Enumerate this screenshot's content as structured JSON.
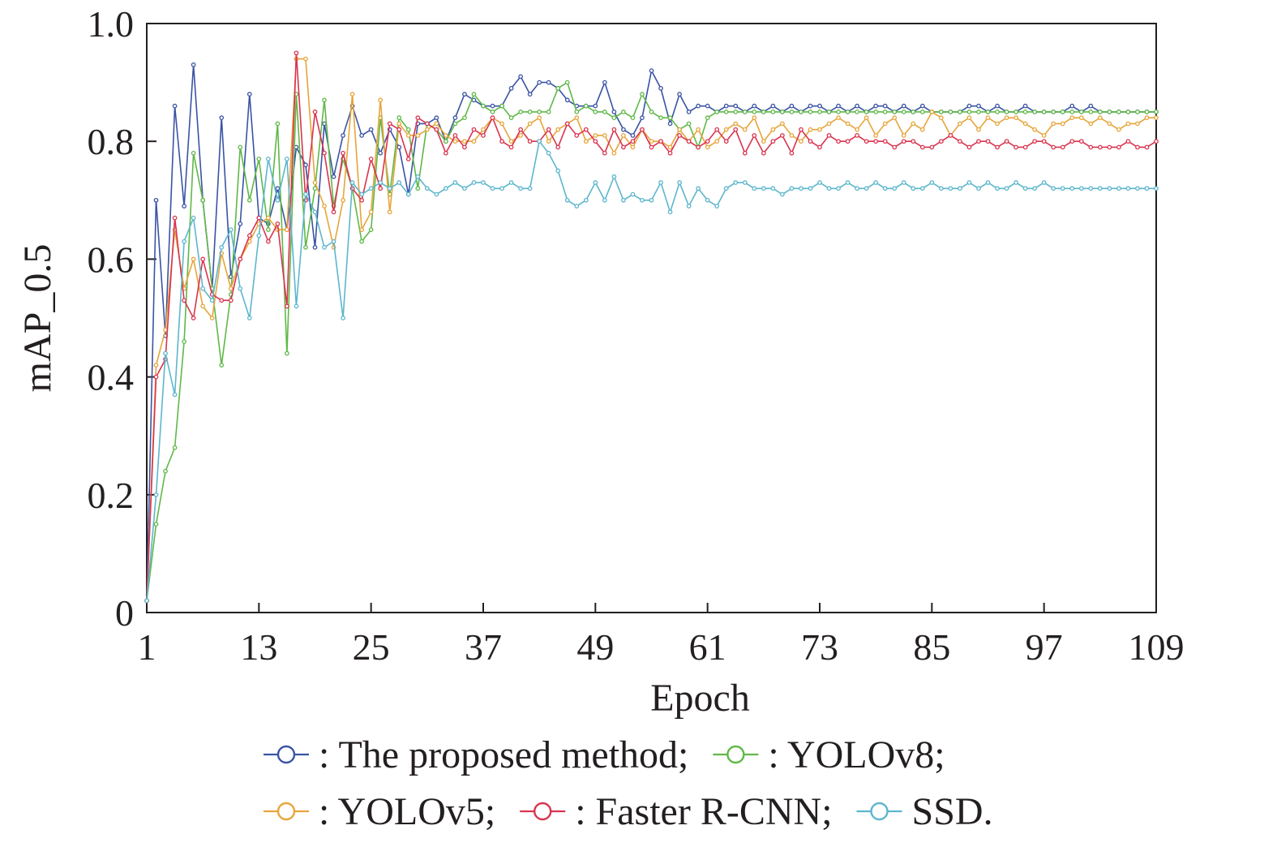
{
  "chart_data": {
    "type": "line",
    "title": "",
    "xlabel": "Epoch",
    "ylabel": "mAP_0.5",
    "xlim": [
      1,
      109
    ],
    "ylim": [
      0,
      1.0
    ],
    "x_ticks": [
      1,
      13,
      25,
      37,
      49,
      61,
      73,
      85,
      97,
      109
    ],
    "y_ticks": [
      0,
      0.2,
      0.4,
      0.6,
      0.8,
      1.0
    ],
    "x_tick_labels": [
      "1",
      "13",
      "25",
      "37",
      "49",
      "61",
      "73",
      "85",
      "97",
      "109"
    ],
    "y_tick_labels": [
      "0",
      "0.2",
      "0.4",
      "0.6",
      "0.8",
      "1.0"
    ],
    "grid": false,
    "legend_position": "bottom",
    "x": [
      1,
      2,
      3,
      4,
      5,
      6,
      7,
      8,
      9,
      10,
      11,
      12,
      13,
      14,
      15,
      16,
      17,
      18,
      19,
      20,
      21,
      22,
      23,
      24,
      25,
      26,
      27,
      28,
      29,
      30,
      31,
      32,
      33,
      34,
      35,
      36,
      37,
      38,
      39,
      40,
      41,
      42,
      43,
      44,
      45,
      46,
      47,
      48,
      49,
      50,
      51,
      52,
      53,
      54,
      55,
      56,
      57,
      58,
      59,
      60,
      61,
      62,
      63,
      64,
      65,
      66,
      67,
      68,
      69,
      70,
      71,
      72,
      73,
      74,
      75,
      76,
      77,
      78,
      79,
      80,
      81,
      82,
      83,
      84,
      85,
      86,
      87,
      88,
      89,
      90,
      91,
      92,
      93,
      94,
      95,
      96,
      97,
      98,
      99,
      100,
      101,
      102,
      103,
      104,
      105,
      106,
      107,
      108,
      109
    ],
    "series": [
      {
        "name": ": The proposed method;",
        "color": "#3a53a4",
        "values": [
          0.02,
          0.7,
          0.47,
          0.86,
          0.69,
          0.93,
          0.7,
          0.55,
          0.84,
          0.57,
          0.66,
          0.88,
          0.67,
          0.66,
          0.72,
          0.65,
          0.79,
          0.76,
          0.62,
          0.83,
          0.74,
          0.81,
          0.86,
          0.81,
          0.82,
          0.78,
          0.82,
          0.79,
          0.71,
          0.83,
          0.83,
          0.84,
          0.8,
          0.84,
          0.88,
          0.87,
          0.86,
          0.86,
          0.86,
          0.89,
          0.91,
          0.88,
          0.9,
          0.9,
          0.89,
          0.87,
          0.86,
          0.86,
          0.86,
          0.9,
          0.85,
          0.82,
          0.81,
          0.84,
          0.92,
          0.89,
          0.83,
          0.88,
          0.85,
          0.86,
          0.86,
          0.85,
          0.86,
          0.86,
          0.85,
          0.86,
          0.85,
          0.86,
          0.85,
          0.86,
          0.85,
          0.86,
          0.86,
          0.85,
          0.86,
          0.85,
          0.86,
          0.85,
          0.86,
          0.86,
          0.85,
          0.86,
          0.85,
          0.86,
          0.85,
          0.85,
          0.85,
          0.85,
          0.86,
          0.86,
          0.85,
          0.86,
          0.85,
          0.85,
          0.86,
          0.85,
          0.85,
          0.85,
          0.85,
          0.86,
          0.85,
          0.86,
          0.85,
          0.85,
          0.85,
          0.85,
          0.85,
          0.85,
          0.85
        ]
      },
      {
        "name": ": YOLOv8;",
        "color": "#5fb847",
        "values": [
          0.02,
          0.15,
          0.24,
          0.28,
          0.46,
          0.78,
          0.7,
          0.55,
          0.42,
          0.54,
          0.79,
          0.7,
          0.77,
          0.65,
          0.83,
          0.44,
          0.88,
          0.62,
          0.72,
          0.87,
          0.69,
          0.77,
          0.72,
          0.63,
          0.65,
          0.84,
          0.71,
          0.84,
          0.82,
          0.72,
          0.83,
          0.82,
          0.8,
          0.83,
          0.84,
          0.88,
          0.86,
          0.85,
          0.86,
          0.84,
          0.85,
          0.85,
          0.85,
          0.85,
          0.89,
          0.9,
          0.85,
          0.86,
          0.85,
          0.85,
          0.84,
          0.85,
          0.84,
          0.88,
          0.85,
          0.84,
          0.84,
          0.82,
          0.83,
          0.79,
          0.84,
          0.85,
          0.85,
          0.85,
          0.85,
          0.85,
          0.85,
          0.85,
          0.85,
          0.85,
          0.85,
          0.85,
          0.85,
          0.85,
          0.85,
          0.85,
          0.85,
          0.85,
          0.85,
          0.85,
          0.85,
          0.85,
          0.85,
          0.85,
          0.85,
          0.85,
          0.85,
          0.85,
          0.85,
          0.85,
          0.85,
          0.85,
          0.85,
          0.85,
          0.85,
          0.85,
          0.85,
          0.85,
          0.85,
          0.85,
          0.85,
          0.85,
          0.85,
          0.85,
          0.85,
          0.85,
          0.85,
          0.85,
          0.85
        ]
      },
      {
        "name": ": YOLOv5;",
        "color": "#e6a53a",
        "values": [
          0.02,
          0.42,
          0.48,
          0.65,
          0.55,
          0.6,
          0.52,
          0.5,
          0.61,
          0.55,
          0.6,
          0.63,
          0.66,
          0.67,
          0.65,
          0.65,
          0.94,
          0.94,
          0.73,
          0.69,
          0.62,
          0.7,
          0.88,
          0.65,
          0.68,
          0.87,
          0.68,
          0.83,
          0.81,
          0.81,
          0.82,
          0.83,
          0.81,
          0.8,
          0.8,
          0.8,
          0.82,
          0.84,
          0.83,
          0.8,
          0.81,
          0.83,
          0.84,
          0.8,
          0.82,
          0.83,
          0.84,
          0.8,
          0.81,
          0.81,
          0.78,
          0.81,
          0.79,
          0.82,
          0.8,
          0.8,
          0.79,
          0.82,
          0.8,
          0.82,
          0.79,
          0.8,
          0.82,
          0.83,
          0.82,
          0.84,
          0.8,
          0.82,
          0.83,
          0.81,
          0.8,
          0.82,
          0.82,
          0.83,
          0.84,
          0.83,
          0.82,
          0.84,
          0.81,
          0.83,
          0.84,
          0.81,
          0.83,
          0.82,
          0.85,
          0.84,
          0.81,
          0.83,
          0.84,
          0.82,
          0.84,
          0.83,
          0.84,
          0.84,
          0.83,
          0.82,
          0.81,
          0.83,
          0.83,
          0.84,
          0.84,
          0.83,
          0.84,
          0.83,
          0.82,
          0.83,
          0.83,
          0.84,
          0.84
        ]
      },
      {
        "name": ": Faster R-CNN;",
        "color": "#d9344f",
        "values": [
          0.02,
          0.4,
          0.43,
          0.67,
          0.53,
          0.5,
          0.6,
          0.54,
          0.53,
          0.53,
          0.6,
          0.64,
          0.67,
          0.63,
          0.66,
          0.52,
          0.95,
          0.7,
          0.85,
          0.78,
          0.68,
          0.78,
          0.72,
          0.7,
          0.77,
          0.72,
          0.83,
          0.82,
          0.77,
          0.84,
          0.83,
          0.82,
          0.78,
          0.81,
          0.79,
          0.82,
          0.81,
          0.84,
          0.8,
          0.79,
          0.82,
          0.8,
          0.8,
          0.82,
          0.79,
          0.83,
          0.81,
          0.82,
          0.8,
          0.78,
          0.82,
          0.79,
          0.8,
          0.82,
          0.79,
          0.8,
          0.78,
          0.81,
          0.8,
          0.79,
          0.8,
          0.82,
          0.8,
          0.82,
          0.78,
          0.81,
          0.78,
          0.8,
          0.81,
          0.78,
          0.82,
          0.8,
          0.79,
          0.81,
          0.8,
          0.8,
          0.81,
          0.8,
          0.8,
          0.8,
          0.79,
          0.8,
          0.8,
          0.79,
          0.79,
          0.8,
          0.81,
          0.8,
          0.79,
          0.8,
          0.8,
          0.79,
          0.8,
          0.79,
          0.79,
          0.8,
          0.8,
          0.79,
          0.79,
          0.8,
          0.8,
          0.79,
          0.79,
          0.79,
          0.79,
          0.8,
          0.79,
          0.79,
          0.8
        ]
      },
      {
        "name": "SSD.",
        "color": "#5db6cd",
        "values": [
          0.02,
          0.2,
          0.44,
          0.37,
          0.63,
          0.67,
          0.55,
          0.53,
          0.62,
          0.65,
          0.55,
          0.5,
          0.64,
          0.77,
          0.7,
          0.77,
          0.52,
          0.71,
          0.68,
          0.62,
          0.63,
          0.5,
          0.73,
          0.71,
          0.72,
          0.73,
          0.72,
          0.73,
          0.71,
          0.74,
          0.72,
          0.71,
          0.72,
          0.73,
          0.72,
          0.73,
          0.73,
          0.72,
          0.72,
          0.73,
          0.72,
          0.72,
          0.8,
          0.78,
          0.75,
          0.7,
          0.69,
          0.7,
          0.73,
          0.7,
          0.74,
          0.7,
          0.71,
          0.7,
          0.7,
          0.73,
          0.68,
          0.73,
          0.69,
          0.72,
          0.7,
          0.69,
          0.72,
          0.73,
          0.73,
          0.72,
          0.72,
          0.72,
          0.71,
          0.72,
          0.72,
          0.72,
          0.73,
          0.72,
          0.72,
          0.73,
          0.72,
          0.72,
          0.73,
          0.72,
          0.72,
          0.73,
          0.72,
          0.72,
          0.73,
          0.72,
          0.72,
          0.72,
          0.73,
          0.72,
          0.73,
          0.72,
          0.72,
          0.73,
          0.72,
          0.72,
          0.73,
          0.72,
          0.72,
          0.72,
          0.72,
          0.72,
          0.72,
          0.72,
          0.72,
          0.72,
          0.72,
          0.72,
          0.72
        ]
      }
    ]
  }
}
